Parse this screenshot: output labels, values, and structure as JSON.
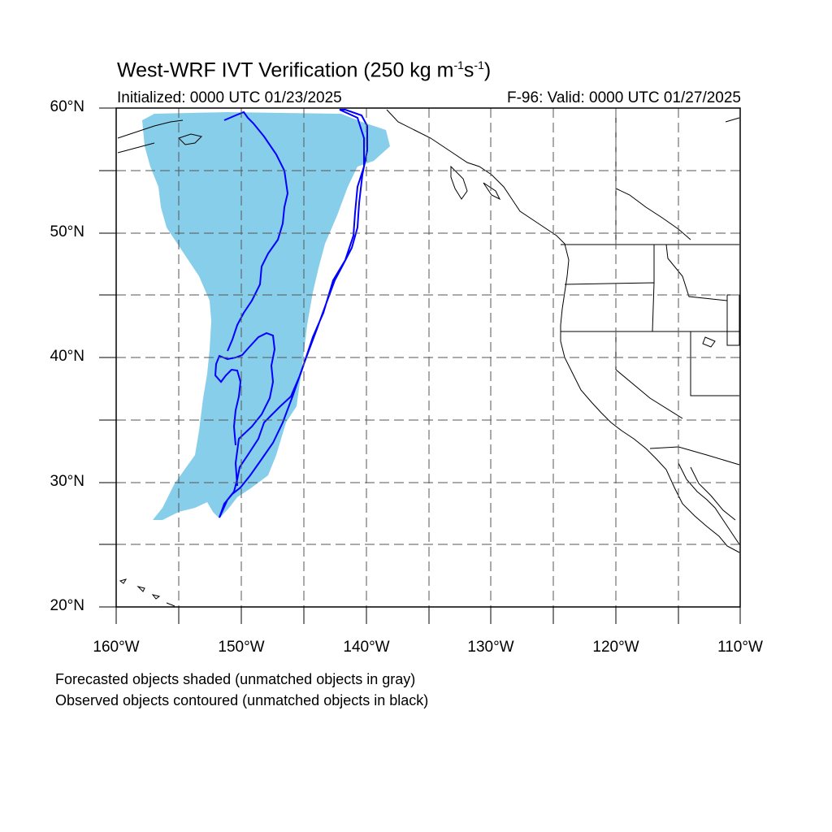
{
  "title": "West-WRF IVT Verification (250 kg m",
  "title_sup1": "-1",
  "title_mid": "s",
  "title_sup2": "-1",
  "title_end": ")",
  "initialized": "Initialized: 0000 UTC 01/23/2025",
  "valid": "F-96: Valid: 0000 UTC 01/27/2025",
  "lat_labels": [
    "60°N",
    "50°N",
    "40°N",
    "30°N",
    "20°N"
  ],
  "lon_labels": [
    "160°W",
    "150°W",
    "140°W",
    "130°W",
    "120°W",
    "110°W"
  ],
  "notes": [
    "Forecasted objects shaded (unmatched objects in gray)",
    "Observed objects contoured (unmatched objects in black)"
  ],
  "colors": {
    "forecast_fill": "#87ceeb",
    "observed_contour": "#0000ff"
  },
  "map_extent": {
    "lon": [
      -160,
      -110
    ],
    "lat": [
      20,
      60
    ]
  }
}
